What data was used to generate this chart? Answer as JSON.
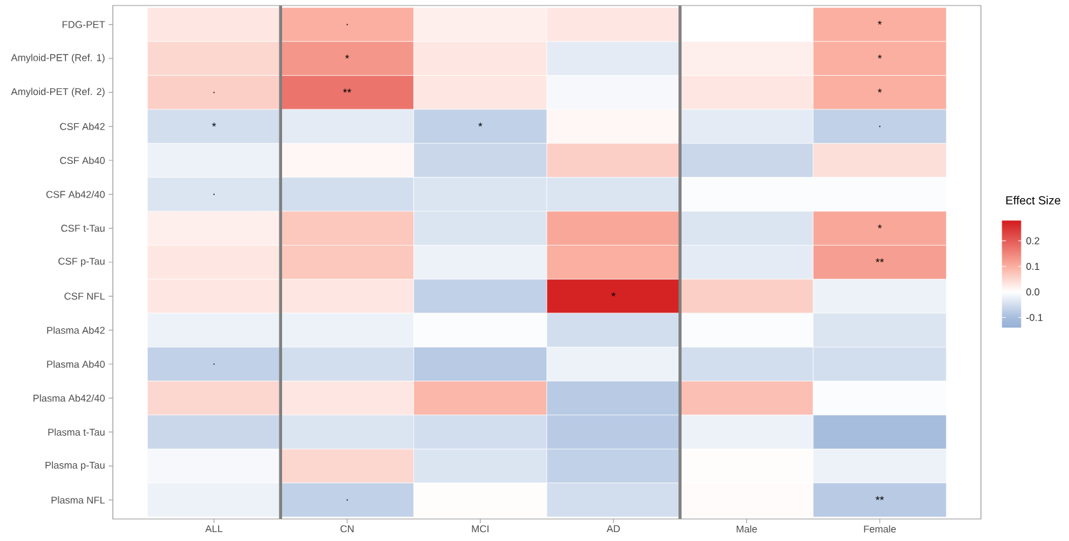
{
  "chart_data": {
    "type": "heatmap",
    "categories": [
      "ALL",
      "CN",
      "MCI",
      "AD",
      "Male",
      "Female"
    ],
    "y_categories": [
      "FDG-PET",
      "Amyloid-PET (Ref. 1)",
      "Amyloid-PET (Ref. 2)",
      "CSF Ab42",
      "CSF Ab40",
      "CSF Ab42/40",
      "CSF t-Tau",
      "CSF p-Tau",
      "CSF NFL",
      "Plasma Ab42",
      "Plasma Ab40",
      "Plasma Ab42/40",
      "Plasma t-Tau",
      "Plasma p-Tau",
      "Plasma NFL"
    ],
    "cells": [
      [
        0.03,
        0.1,
        0.02,
        0.03,
        0.0,
        0.1
      ],
      [
        0.05,
        0.13,
        0.03,
        -0.03,
        0.02,
        0.1
      ],
      [
        0.06,
        0.17,
        0.03,
        -0.01,
        0.03,
        0.1
      ],
      [
        -0.05,
        -0.03,
        -0.07,
        0.01,
        -0.03,
        -0.07
      ],
      [
        -0.02,
        0.01,
        -0.06,
        0.06,
        -0.06,
        0.04
      ],
      [
        -0.04,
        -0.05,
        -0.04,
        -0.04,
        -0.005,
        -0.005
      ],
      [
        0.02,
        0.07,
        -0.04,
        0.11,
        -0.04,
        0.11
      ],
      [
        0.03,
        0.07,
        -0.02,
        0.1,
        -0.03,
        0.12
      ],
      [
        0.03,
        0.03,
        -0.07,
        0.27,
        0.06,
        -0.02
      ],
      [
        -0.02,
        -0.02,
        -0.005,
        -0.05,
        -0.005,
        -0.04
      ],
      [
        -0.07,
        -0.05,
        -0.08,
        -0.02,
        -0.05,
        -0.05
      ],
      [
        0.05,
        0.03,
        0.09,
        -0.08,
        0.08,
        -0.005
      ],
      [
        -0.06,
        -0.04,
        -0.05,
        -0.08,
        -0.02,
        -0.1
      ],
      [
        -0.01,
        0.05,
        -0.04,
        -0.07,
        0.003,
        -0.02
      ],
      [
        -0.02,
        -0.07,
        0.003,
        -0.05,
        0.005,
        -0.08
      ]
    ],
    "cell_labels": [
      [
        null,
        ".",
        null,
        null,
        null,
        "*"
      ],
      [
        null,
        "*",
        null,
        null,
        null,
        "*"
      ],
      [
        ".",
        "**",
        null,
        null,
        null,
        "*"
      ],
      [
        "*",
        null,
        "*",
        null,
        null,
        "."
      ],
      [
        null,
        null,
        null,
        null,
        null,
        null
      ],
      [
        ".",
        null,
        null,
        null,
        null,
        null
      ],
      [
        null,
        null,
        null,
        null,
        null,
        "*"
      ],
      [
        null,
        null,
        null,
        null,
        null,
        "**"
      ],
      [
        null,
        null,
        null,
        "*",
        null,
        null
      ],
      [
        null,
        null,
        null,
        null,
        null,
        null
      ],
      [
        ".",
        null,
        null,
        null,
        null,
        null
      ],
      [
        null,
        null,
        null,
        null,
        null,
        null
      ],
      [
        null,
        null,
        null,
        null,
        null,
        null
      ],
      [
        null,
        null,
        null,
        null,
        null,
        null
      ],
      [
        null,
        ".",
        null,
        null,
        null,
        "**"
      ]
    ],
    "clabel": "Effect Size",
    "clim": [
      -0.14,
      0.28
    ],
    "cticks": [
      {
        "value": -0.1,
        "label": "-0.1"
      },
      {
        "value": 0,
        "label": "0.0"
      },
      {
        "value": 0.1,
        "label": "0.1"
      },
      {
        "value": 0.2,
        "label": "0.2"
      }
    ]
  }
}
